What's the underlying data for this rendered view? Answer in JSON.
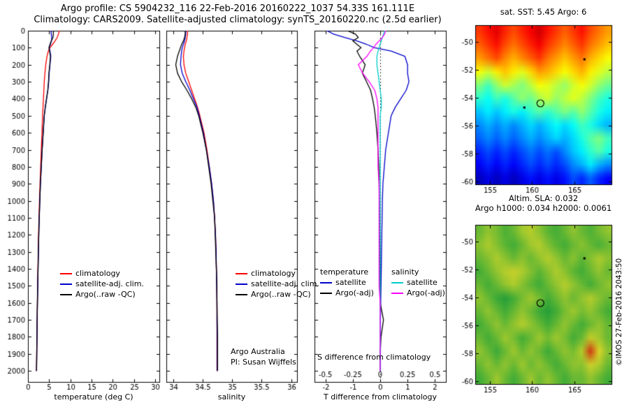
{
  "header": {
    "title_line1": "Argo profile: CS 5904232_116 22-Feb-2016 20160222_1037 54.33S 161.111E",
    "title_line2": "Climatology: CARS2009. Satellite-adjusted climatology: synTS_20160220.nc (2.5d earlier)"
  },
  "credit": "©IMOS 27-Feb-2016 2043:50",
  "annotations": {
    "argo_australia": "Argo Australia",
    "pi": "PI: Susan Wijffels",
    "s_difference": "S difference from climatology"
  },
  "colors": {
    "climatology": "#ff0000",
    "satellite_clim": "#0000cc",
    "argo": "#000000",
    "satellite_salinity": "#00cccc",
    "argo_salinity": "#ff00ff"
  },
  "chart_data": [
    {
      "id": "temperature_profile",
      "type": "line",
      "xlabel": "temperature (deg C)",
      "ylabel": "depth (m)",
      "xlim": [
        0,
        31
      ],
      "xticks": [
        0,
        5,
        10,
        15,
        20,
        25,
        30
      ],
      "ylim": [
        0,
        2065
      ],
      "yticks": [
        0,
        100,
        200,
        300,
        400,
        500,
        600,
        700,
        800,
        900,
        1000,
        1100,
        1200,
        1300,
        1400,
        1500,
        1600,
        1700,
        1800,
        1900,
        2000
      ],
      "depths": [
        0,
        20,
        40,
        60,
        80,
        100,
        120,
        150,
        200,
        250,
        300,
        350,
        400,
        450,
        500,
        600,
        700,
        800,
        900,
        1000,
        1100,
        1200,
        1300,
        1400,
        1500,
        1600,
        1700,
        1800,
        1900,
        2000
      ],
      "series": [
        {
          "name": "climatology",
          "color": "#ff0000",
          "values": [
            7.4,
            7.2,
            6.9,
            6.4,
            5.8,
            5.2,
            4.8,
            4.5,
            4.2,
            4.0,
            3.85,
            3.75,
            3.65,
            3.55,
            3.45,
            3.3,
            3.15,
            3.0,
            2.85,
            2.72,
            2.6,
            2.5,
            2.42,
            2.35,
            2.28,
            2.22,
            2.17,
            2.12,
            2.07,
            2.02
          ]
        },
        {
          "name": "satellite-adj. clim.",
          "color": "#0000cc",
          "values": [
            5.45,
            5.5,
            5.6,
            5.55,
            5.3,
            5.0,
            5.2,
            5.4,
            5.2,
            5.0,
            4.9,
            4.7,
            4.4,
            4.1,
            3.85,
            3.6,
            3.35,
            3.15,
            2.95,
            2.8,
            2.67,
            2.56,
            2.47,
            2.39,
            2.31,
            2.24,
            2.18,
            2.13,
            2.08,
            2.03
          ]
        },
        {
          "name": "Argo(..raw -QC)",
          "color": "#000000",
          "values": [
            6.0,
            6.0,
            5.9,
            5.5,
            5.2,
            4.95,
            5.1,
            5.3,
            5.15,
            4.95,
            4.85,
            4.68,
            4.38,
            4.08,
            3.84,
            3.59,
            3.34,
            3.14,
            2.94,
            2.79,
            2.66,
            2.55,
            2.46,
            2.38,
            2.3,
            2.23,
            2.17,
            2.12,
            2.07,
            2.02
          ]
        }
      ]
    },
    {
      "id": "salinity_profile",
      "type": "line",
      "xlabel": "salinity",
      "ylabel": "depth (m)",
      "xlim": [
        33.88,
        36.1
      ],
      "xticks": [
        34,
        34.5,
        35,
        35.5,
        36
      ],
      "ylim": [
        0,
        2065
      ],
      "yticks": [
        0,
        100,
        200,
        300,
        400,
        500,
        600,
        700,
        800,
        900,
        1000,
        1100,
        1200,
        1300,
        1400,
        1500,
        1600,
        1700,
        1800,
        1900,
        2000
      ],
      "depths": [
        0,
        20,
        40,
        60,
        80,
        100,
        120,
        150,
        200,
        250,
        300,
        350,
        400,
        450,
        500,
        600,
        700,
        800,
        900,
        1000,
        1100,
        1200,
        1300,
        1400,
        1500,
        1600,
        1700,
        1800,
        1900,
        2000
      ],
      "series": [
        {
          "name": "climatology",
          "color": "#ff0000",
          "values": [
            34.24,
            34.24,
            34.23,
            34.22,
            34.2,
            34.19,
            34.18,
            34.17,
            34.18,
            34.21,
            34.26,
            34.31,
            34.36,
            34.41,
            34.45,
            34.52,
            34.57,
            34.61,
            34.65,
            34.68,
            34.7,
            34.715,
            34.725,
            34.73,
            34.735,
            34.74,
            34.74,
            34.74,
            34.74,
            34.74
          ]
        },
        {
          "name": "satellite-adj. clim.",
          "color": "#0000cc",
          "values": [
            34.21,
            34.21,
            34.2,
            34.19,
            34.17,
            34.15,
            34.14,
            34.13,
            34.12,
            34.15,
            34.21,
            34.28,
            34.34,
            34.4,
            34.44,
            34.51,
            34.56,
            34.61,
            34.65,
            34.68,
            34.7,
            34.715,
            34.725,
            34.73,
            34.735,
            34.74,
            34.74,
            34.745,
            34.745,
            34.745
          ]
        },
        {
          "name": "Argo(..raw -QC)",
          "color": "#000000",
          "values": [
            34.2,
            34.2,
            34.19,
            34.17,
            34.14,
            34.12,
            34.1,
            34.07,
            34.04,
            34.07,
            34.14,
            34.23,
            34.31,
            34.38,
            34.43,
            34.5,
            34.56,
            34.6,
            34.64,
            34.67,
            34.7,
            34.71,
            34.72,
            34.73,
            34.74,
            34.74,
            34.745,
            34.75,
            34.75,
            34.75
          ]
        }
      ]
    },
    {
      "id": "difference_profile",
      "type": "line",
      "xlabel": "T difference from climatology",
      "xlabel2": "S difference from climatology",
      "xlim": [
        -2.4,
        2.4
      ],
      "xticks": [
        -2,
        -1,
        0,
        1,
        2
      ],
      "xticks2": [
        -0.5,
        -0.25,
        0,
        0.25,
        0.5
      ],
      "s_scale": 4,
      "zero_line": true,
      "ylim": [
        0,
        2065
      ],
      "yticks": [
        0,
        100,
        200,
        300,
        400,
        500,
        600,
        700,
        800,
        900,
        1000,
        1100,
        1200,
        1300,
        1400,
        1500,
        1600,
        1700,
        1800,
        1900,
        2000
      ],
      "depths": [
        0,
        20,
        40,
        60,
        80,
        100,
        120,
        150,
        200,
        250,
        300,
        350,
        400,
        450,
        500,
        600,
        700,
        800,
        900,
        1000,
        1100,
        1200,
        1300,
        1400,
        1500,
        1600,
        1700,
        1800,
        1900,
        2000
      ],
      "legend_groups": [
        {
          "header": "temperature",
          "entries": [
            {
              "name": "satellite",
              "color": "#0000cc"
            },
            {
              "name": "Argo(-adj)",
              "color": "#000000"
            }
          ]
        },
        {
          "header": "salinity",
          "entries": [
            {
              "name": "satellite",
              "color": "#00cccc"
            },
            {
              "name": "Argo(-adj)",
              "color": "#ff00ff"
            }
          ]
        }
      ],
      "series": [
        {
          "name": "satellite T difference",
          "color": "#0000cc",
          "axis": "T",
          "values": [
            -1.95,
            -1.7,
            -1.3,
            -0.85,
            -0.5,
            -0.2,
            0.4,
            0.9,
            1.0,
            1.0,
            1.05,
            0.95,
            0.75,
            0.55,
            0.4,
            0.3,
            0.2,
            0.15,
            0.1,
            0.08,
            0.07,
            0.06,
            0.05,
            0.04,
            0.03,
            0.02,
            0.01,
            0.01,
            0.01,
            0.01
          ]
        },
        {
          "name": "Argo(-adj) T difference",
          "color": "#000000",
          "axis": "T",
          "values": [
            -1.2,
            -0.9,
            -0.8,
            -1.0,
            -0.85,
            -0.7,
            -0.85,
            -0.75,
            -0.55,
            -0.65,
            -0.5,
            -0.35,
            -0.28,
            -0.22,
            -0.18,
            -0.12,
            -0.08,
            -0.05,
            -0.04,
            -0.03,
            -0.02,
            -0.02,
            -0.01,
            -0.01,
            0.0,
            0.0,
            0.12,
            0.03,
            0.0,
            0.0
          ]
        },
        {
          "name": "satellite S difference",
          "color": "#00cccc",
          "axis": "S",
          "values": [
            0.04,
            0.03,
            0.02,
            0.01,
            0.0,
            -0.01,
            -0.02,
            -0.03,
            -0.03,
            -0.02,
            -0.01,
            0.0,
            0.01,
            0.01,
            0.0,
            0.0,
            0.0,
            0.0,
            0.0,
            0.0,
            0.0,
            0.0,
            0.0,
            0.0,
            0.0,
            0.0,
            0.0,
            0.0,
            0.0,
            0.0
          ]
        },
        {
          "name": "Argo(-adj) S difference",
          "color": "#ff00ff",
          "axis": "S",
          "values": [
            0.05,
            0.04,
            0.02,
            -0.01,
            -0.04,
            -0.06,
            -0.09,
            -0.12,
            -0.2,
            -0.16,
            -0.1,
            -0.05,
            -0.03,
            -0.02,
            -0.02,
            -0.02,
            -0.02,
            -0.02,
            -0.01,
            -0.01,
            -0.01,
            -0.01,
            -0.01,
            -0.01,
            -0.01,
            0.0,
            0.0,
            0.0,
            0.0,
            0.0
          ]
        }
      ]
    },
    {
      "id": "sst_map",
      "type": "heatmap",
      "title": "sat. SST: 5.45 Argo: 6",
      "colormap": "jet",
      "xticks": [
        155,
        160,
        165
      ],
      "yticks": [
        -50,
        -52,
        -54,
        -56,
        -58,
        -60
      ],
      "xlim": [
        153.3,
        169.4
      ],
      "ylim": [
        -48.8,
        -60.2
      ],
      "markers": [
        {
          "type": "circle",
          "lon": 161.0,
          "lat": -54.4
        },
        {
          "type": "dot",
          "lon": 166.2,
          "lat": -51.25
        },
        {
          "type": "dot",
          "lon": 159.1,
          "lat": -54.7
        }
      ],
      "grid": [
        [
          0.82,
          0.86,
          0.9,
          0.84,
          0.8,
          0.84,
          0.88,
          0.92,
          0.86,
          0.82,
          0.78,
          0.82,
          0.86,
          0.8,
          0.76,
          0.72
        ],
        [
          0.78,
          0.82,
          0.86,
          0.8,
          0.76,
          0.8,
          0.84,
          0.88,
          0.82,
          0.78,
          0.74,
          0.78,
          0.82,
          0.76,
          0.72,
          0.68
        ],
        [
          0.72,
          0.76,
          0.8,
          0.74,
          0.7,
          0.74,
          0.78,
          0.82,
          0.76,
          0.72,
          0.68,
          0.72,
          0.76,
          0.7,
          0.66,
          0.62
        ],
        [
          0.62,
          0.58,
          0.64,
          0.68,
          0.64,
          0.6,
          0.66,
          0.72,
          0.7,
          0.66,
          0.62,
          0.66,
          0.7,
          0.64,
          0.6,
          0.56
        ],
        [
          0.5,
          0.44,
          0.52,
          0.58,
          0.54,
          0.5,
          0.56,
          0.62,
          0.6,
          0.56,
          0.52,
          0.58,
          0.62,
          0.58,
          0.52,
          0.48
        ],
        [
          0.42,
          0.38,
          0.44,
          0.4,
          0.46,
          0.52,
          0.48,
          0.54,
          0.58,
          0.52,
          0.56,
          0.6,
          0.56,
          0.5,
          0.44,
          0.4
        ],
        [
          0.32,
          0.36,
          0.32,
          0.36,
          0.4,
          0.36,
          0.42,
          0.46,
          0.42,
          0.46,
          0.5,
          0.46,
          0.52,
          0.46,
          0.4,
          0.36
        ],
        [
          0.26,
          0.3,
          0.26,
          0.3,
          0.26,
          0.3,
          0.34,
          0.3,
          0.34,
          0.38,
          0.34,
          0.38,
          0.44,
          0.4,
          0.34,
          0.3
        ],
        [
          0.22,
          0.26,
          0.22,
          0.26,
          0.22,
          0.26,
          0.3,
          0.26,
          0.3,
          0.34,
          0.3,
          0.34,
          0.4,
          0.46,
          0.5,
          0.44
        ],
        [
          0.16,
          0.2,
          0.16,
          0.2,
          0.16,
          0.2,
          0.24,
          0.2,
          0.24,
          0.2,
          0.26,
          0.32,
          0.36,
          0.42,
          0.46,
          0.4
        ],
        [
          0.12,
          0.16,
          0.12,
          0.16,
          0.12,
          0.16,
          0.2,
          0.16,
          0.2,
          0.16,
          0.2,
          0.26,
          0.3,
          0.36,
          0.3,
          0.26
        ],
        [
          0.06,
          0.1,
          0.06,
          0.1,
          0.06,
          0.1,
          0.14,
          0.1,
          0.14,
          0.1,
          0.14,
          0.2,
          0.16,
          0.22,
          0.16,
          0.12
        ]
      ]
    },
    {
      "id": "sla_map",
      "type": "heatmap",
      "title_line1": "Altim. SLA: 0.032",
      "title_line2": "Argo h1000: 0.034 h2000: 0.0061",
      "colormap": "sla",
      "xticks": [
        155,
        160,
        165
      ],
      "yticks": [
        -50,
        -52,
        -54,
        -56,
        -58,
        -60
      ],
      "xlim": [
        153.3,
        169.4
      ],
      "ylim": [
        -48.8,
        -60.2
      ],
      "markers": [
        {
          "type": "circle",
          "lon": 161.0,
          "lat": -54.4
        },
        {
          "type": "dot",
          "lon": 166.2,
          "lat": -51.2
        }
      ],
      "grid": [
        [
          0.5,
          0.56,
          0.52,
          0.46,
          0.5,
          0.58,
          0.62,
          0.55,
          0.48,
          0.45,
          0.5,
          0.56,
          0.5,
          0.46,
          0.52,
          0.56
        ],
        [
          0.55,
          0.6,
          0.54,
          0.48,
          0.44,
          0.5,
          0.58,
          0.62,
          0.54,
          0.48,
          0.44,
          0.5,
          0.55,
          0.5,
          0.45,
          0.5
        ],
        [
          0.5,
          0.54,
          0.6,
          0.55,
          0.5,
          0.55,
          0.5,
          0.56,
          0.62,
          0.56,
          0.5,
          0.55,
          0.48,
          0.54,
          0.6,
          0.55
        ],
        [
          0.44,
          0.5,
          0.56,
          0.62,
          0.66,
          0.6,
          0.54,
          0.48,
          0.54,
          0.6,
          0.55,
          0.48,
          0.44,
          0.5,
          0.56,
          0.5
        ],
        [
          0.5,
          0.44,
          0.5,
          0.56,
          0.6,
          0.54,
          0.48,
          0.43,
          0.5,
          0.56,
          0.62,
          0.56,
          0.5,
          0.44,
          0.5,
          0.56
        ],
        [
          0.56,
          0.5,
          0.42,
          0.36,
          0.44,
          0.52,
          0.58,
          0.52,
          0.44,
          0.5,
          0.56,
          0.5,
          0.56,
          0.62,
          0.55,
          0.5
        ],
        [
          0.5,
          0.56,
          0.5,
          0.44,
          0.5,
          0.56,
          0.5,
          0.42,
          0.36,
          0.44,
          0.52,
          0.58,
          0.52,
          0.56,
          0.5,
          0.44
        ],
        [
          0.44,
          0.5,
          0.56,
          0.5,
          0.56,
          0.62,
          0.56,
          0.5,
          0.44,
          0.5,
          0.56,
          0.5,
          0.44,
          0.5,
          0.56,
          0.5
        ],
        [
          0.5,
          0.44,
          0.5,
          0.58,
          0.52,
          0.44,
          0.5,
          0.58,
          0.52,
          0.58,
          0.52,
          0.44,
          0.5,
          0.66,
          0.58,
          0.5
        ],
        [
          0.56,
          0.5,
          0.42,
          0.5,
          0.58,
          0.5,
          0.56,
          0.5,
          0.42,
          0.5,
          0.56,
          0.52,
          0.62,
          0.97,
          0.72,
          0.55
        ],
        [
          0.5,
          0.56,
          0.5,
          0.56,
          0.5,
          0.58,
          0.5,
          0.56,
          0.5,
          0.44,
          0.5,
          0.56,
          0.55,
          0.68,
          0.6,
          0.5
        ],
        [
          0.44,
          0.5,
          0.58,
          0.5,
          0.44,
          0.5,
          0.58,
          0.5,
          0.56,
          0.5,
          0.44,
          0.5,
          0.5,
          0.56,
          0.5,
          0.44
        ]
      ]
    }
  ]
}
